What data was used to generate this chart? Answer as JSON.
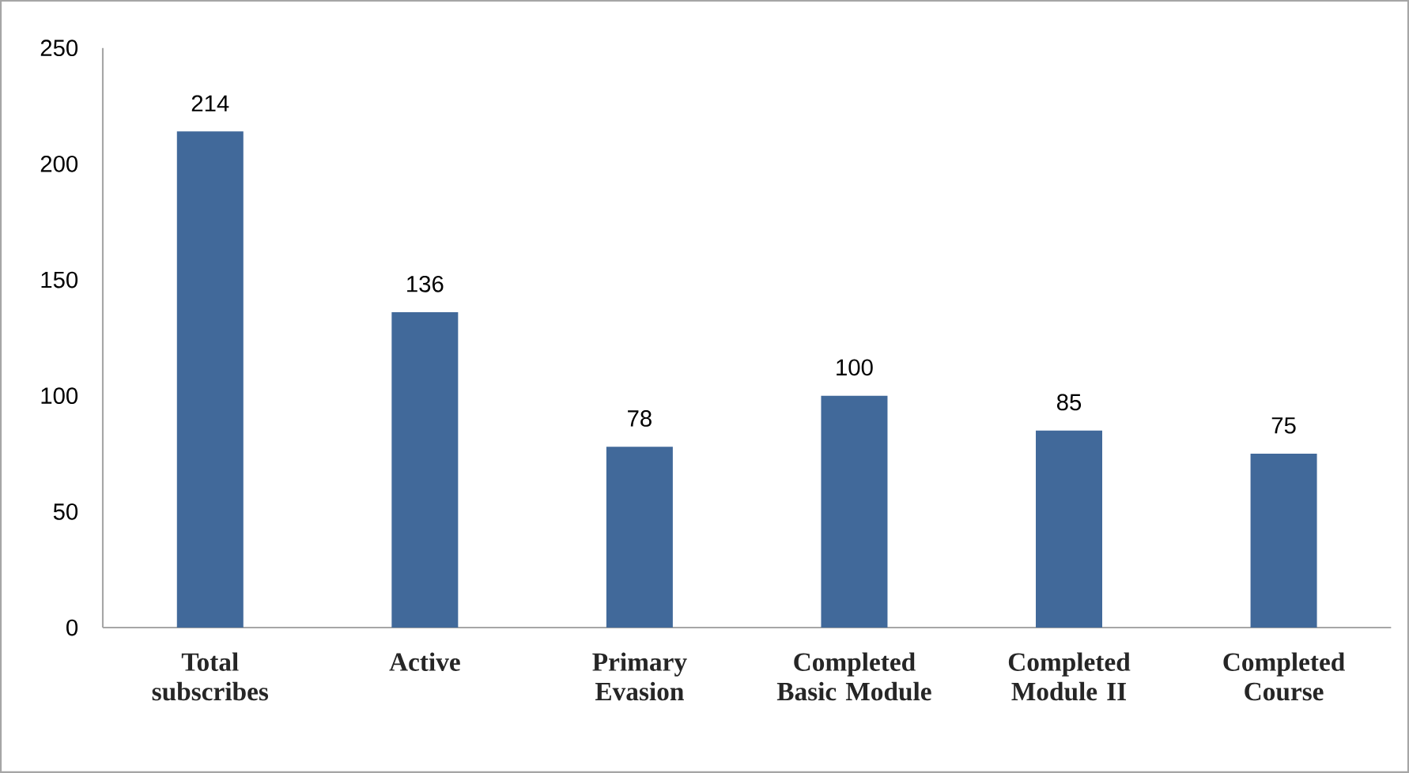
{
  "chart_data": {
    "type": "bar",
    "categories": [
      "Total subscribes",
      "Active",
      "Primary Evasion",
      "Completed Basic Module",
      "Completed Module II",
      "Completed Course"
    ],
    "values": [
      214,
      136,
      78,
      100,
      85,
      75
    ],
    "color": "#41699a",
    "ylim": [
      0,
      250
    ],
    "yticks": [
      0,
      50,
      100,
      150,
      200,
      250
    ],
    "data_labels": true
  }
}
